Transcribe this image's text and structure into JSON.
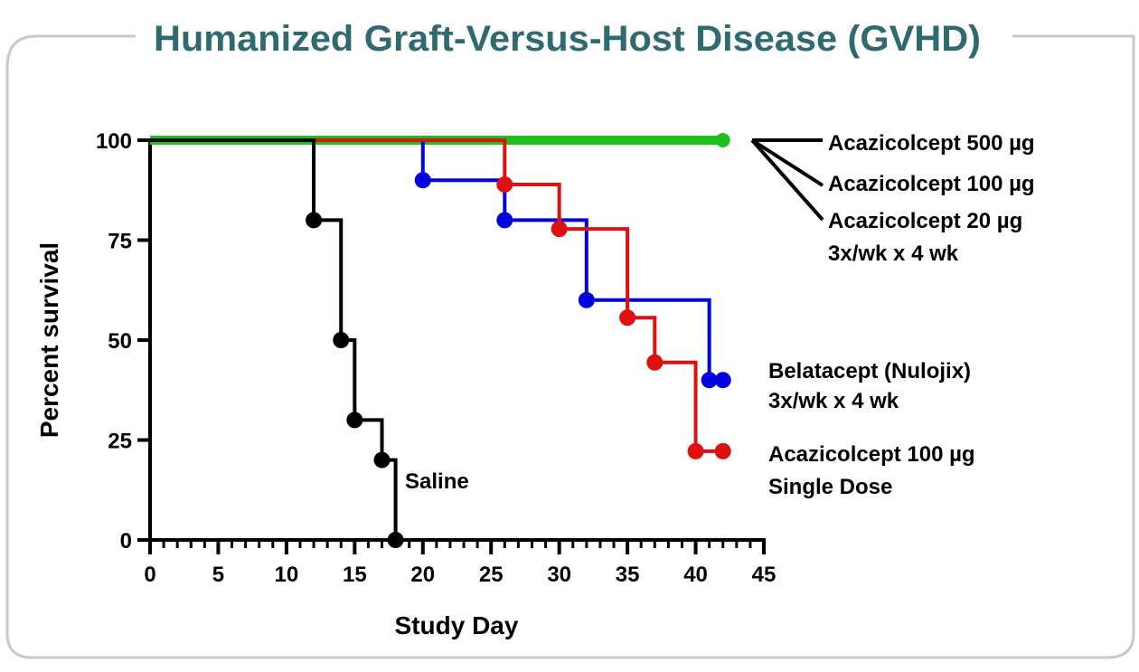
{
  "chart_data": {
    "type": "line",
    "subtype": "kaplan-meier step",
    "title": "Humanized Graft-Versus-Host Disease (GVHD)",
    "title_color": "#2e6a70",
    "xlabel": "Study Day",
    "ylabel": "Percent survival",
    "xlim": [
      0,
      45
    ],
    "ylim": [
      0,
      100
    ],
    "xticks": [
      0,
      5,
      10,
      15,
      20,
      25,
      30,
      35,
      40,
      45
    ],
    "yticks": [
      0,
      25,
      50,
      75,
      100
    ],
    "grid": false,
    "series": [
      {
        "name": "Saline",
        "color": "#000000",
        "x": [
          0,
          12,
          14,
          15,
          17,
          18
        ],
        "y": [
          100,
          80,
          50,
          30,
          20,
          0
        ],
        "markers_x": [
          12,
          14,
          15,
          17,
          18
        ],
        "markers_y": [
          80,
          50,
          30,
          20,
          0
        ]
      },
      {
        "name": "Belatacept (Nulojix) 3x/wk x 4 wk",
        "color": "#0000e0",
        "x": [
          0,
          20,
          26,
          32,
          41,
          42
        ],
        "y": [
          100,
          90,
          80,
          60,
          40,
          40
        ],
        "markers_x": [
          20,
          26,
          32,
          41,
          42
        ],
        "markers_y": [
          90,
          80,
          60,
          40,
          40
        ]
      },
      {
        "name": "Acazicolcept 100 µg Single Dose",
        "color": "#e01010",
        "x": [
          0,
          26,
          30,
          35,
          37,
          40,
          42
        ],
        "y": [
          100,
          88.9,
          77.8,
          55.6,
          44.4,
          22.2,
          22.2
        ],
        "markers_x": [
          26,
          30,
          35,
          37,
          40,
          42
        ],
        "markers_y": [
          88.9,
          77.8,
          55.6,
          44.4,
          22.2,
          22.2
        ]
      },
      {
        "name": "Acazicolcept 500 µg / 100 µg / 20 µg 3x/wk x 4 wk",
        "color": "#1ec01e",
        "x": [
          0,
          42
        ],
        "y": [
          100,
          100
        ],
        "markers_x": [
          42
        ],
        "markers_y": [
          100
        ]
      }
    ],
    "labels": {
      "saline": "Saline",
      "acaz500": "Acazicolcept 500 µg",
      "acaz100": "Acazicolcept 100 µg",
      "acaz20": "Acazicolcept 20 µg",
      "acaz_regimen": "3x/wk x 4 wk",
      "bela": "Belatacept (Nulojix)",
      "bela_regimen": "3x/wk x 4 wk",
      "acaz_single": "Acazicolcept 100 µg",
      "acaz_single_regimen": "Single Dose"
    }
  }
}
